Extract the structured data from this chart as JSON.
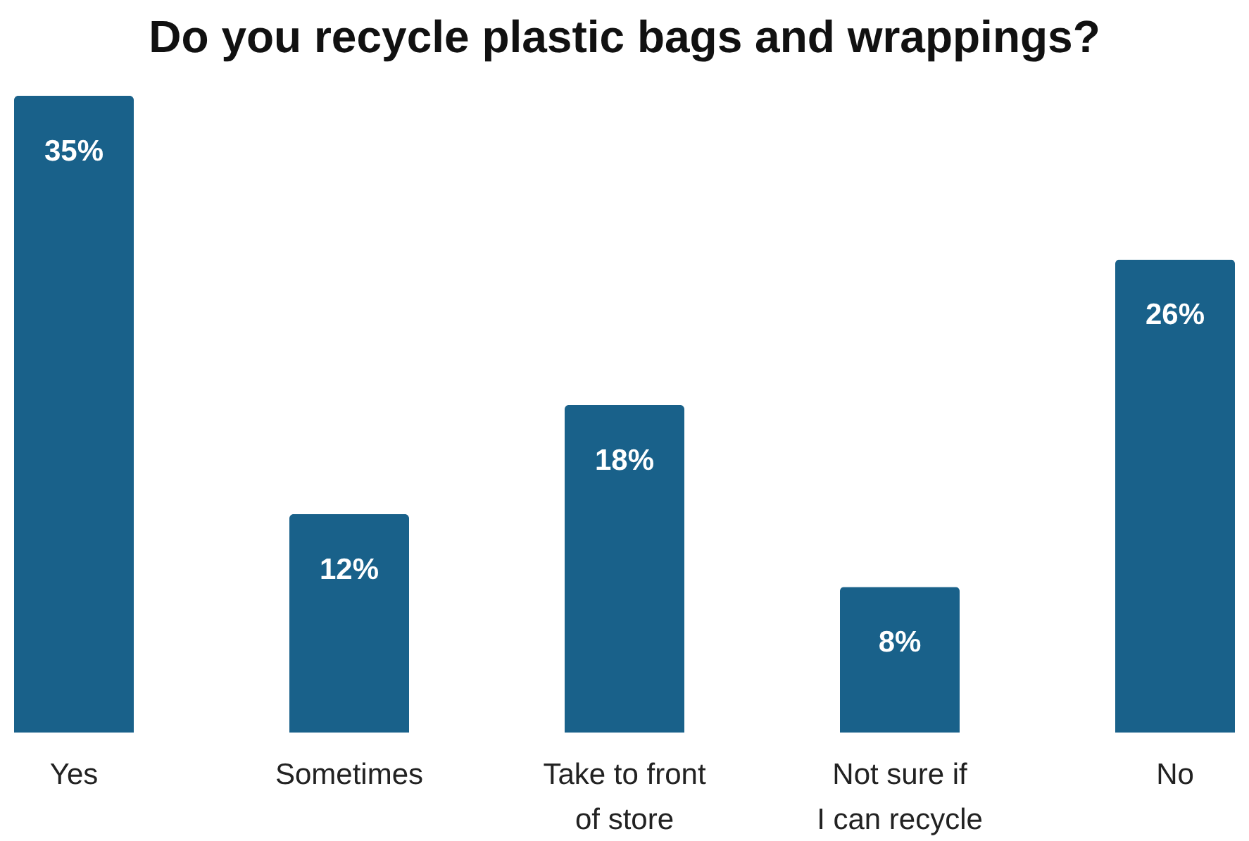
{
  "chart_data": {
    "type": "bar",
    "title": "Do you recycle plastic bags and wrappings?",
    "categories": [
      "Yes",
      "Sometimes",
      "Take to front of store",
      "Not sure if I can recycle",
      "No"
    ],
    "values": [
      35,
      12,
      18,
      8,
      26
    ],
    "color": "#19618a",
    "value_labels": [
      "35%",
      "12%",
      "18%",
      "8%",
      "26%"
    ]
  }
}
